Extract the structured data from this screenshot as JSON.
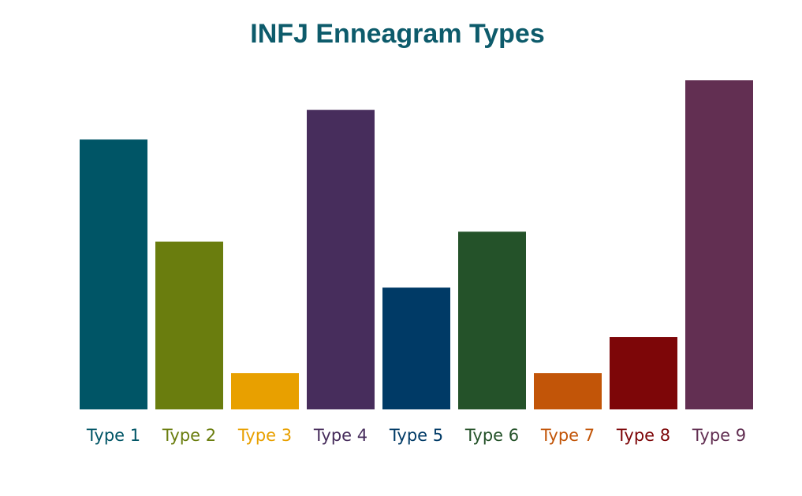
{
  "chart_data": {
    "type": "bar",
    "title": "INFJ Enneagram Types",
    "categories": [
      "Type 1",
      "Type 2",
      "Type 3",
      "Type 4",
      "Type 5",
      "Type 6",
      "Type 7",
      "Type 8",
      "Type 9"
    ],
    "values": [
      82,
      51,
      11,
      91,
      37,
      54,
      11,
      22,
      100
    ],
    "colors": [
      "#005566",
      "#6a7d0e",
      "#e8a000",
      "#472d5c",
      "#003a66",
      "#245229",
      "#c25508",
      "#7d0608",
      "#622f52"
    ],
    "ylim": [
      0,
      100
    ]
  }
}
